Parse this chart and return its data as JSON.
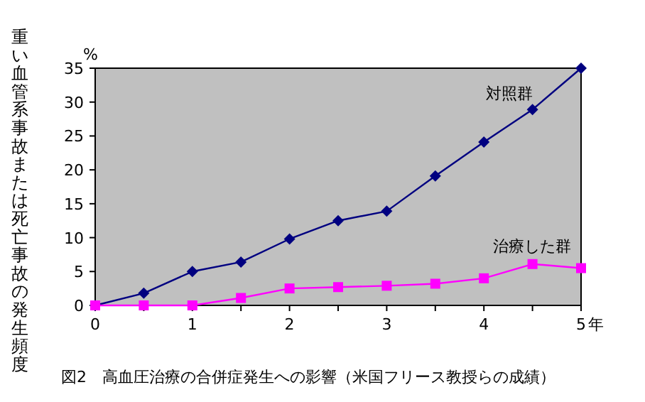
{
  "chart_data": {
    "type": "line",
    "title": "図2　高血圧治療の合併症発生への影響（米国フリース教授らの成績）",
    "xlabel": "年",
    "ylabel": "重い血管系事故または死亡事故の発生頻度",
    "annotations": [
      "%"
    ],
    "x": [
      0,
      0.5,
      1,
      1.5,
      2,
      2.5,
      3,
      3.5,
      4,
      4.5,
      5
    ],
    "series": [
      {
        "name": "対照群",
        "color": "#000080",
        "marker": "diamond",
        "values": [
          0,
          1.8,
          5,
          6.4,
          9.8,
          12.5,
          13.9,
          19.1,
          24.1,
          28.9,
          35
        ]
      },
      {
        "name": "治療した群",
        "color": "#ff00ff",
        "marker": "square",
        "values": [
          0,
          0,
          0,
          1.1,
          2.5,
          2.7,
          2.9,
          3.2,
          4,
          6.1,
          5.5
        ]
      }
    ],
    "xlim": [
      0,
      5
    ],
    "ylim": [
      0,
      35
    ],
    "xticks": [
      0,
      {
        "value": 0.5,
        "label": null
      },
      1,
      {
        "value": 1.5,
        "label": null
      },
      2,
      {
        "value": 2.5,
        "label": null
      },
      3,
      {
        "value": 3.5,
        "label": null
      },
      4,
      {
        "value": 4.5,
        "label": null
      },
      5
    ],
    "yticks": [
      0,
      5,
      10,
      15,
      20,
      25,
      30,
      35
    ],
    "grid": false,
    "legend": false
  }
}
